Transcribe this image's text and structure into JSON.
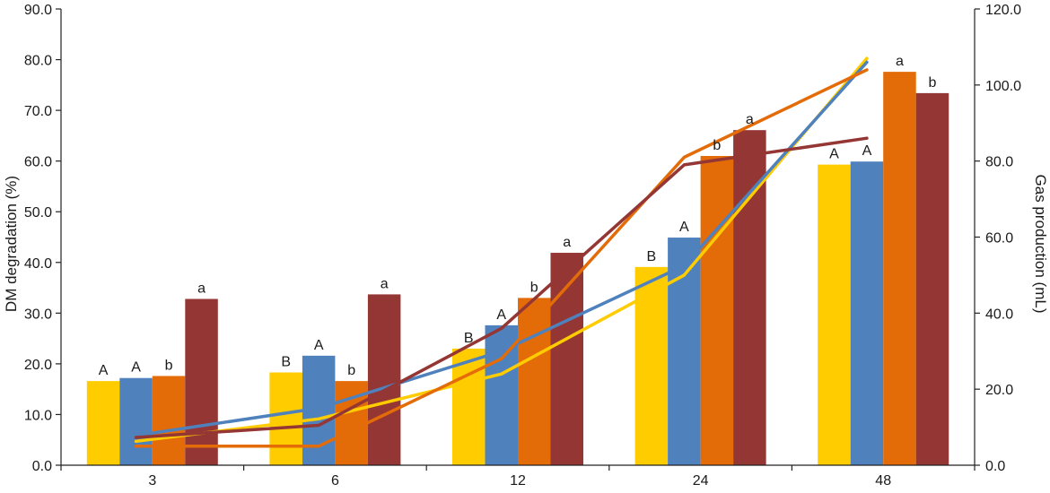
{
  "chart_data": {
    "type": "bar",
    "title": "",
    "xlabel": "",
    "ylabel": "DM degradation (%)",
    "y2label": "Gas production (mL)",
    "categories": [
      "3",
      "6",
      "12",
      "24",
      "48"
    ],
    "ylim": [
      0,
      90
    ],
    "y2lim": [
      0,
      120
    ],
    "yticks": [
      "0.0",
      "10.0",
      "20.0",
      "30.0",
      "40.0",
      "50.0",
      "60.0",
      "70.0",
      "80.0",
      "90.0"
    ],
    "y2ticks": [
      "0.0",
      "20.0",
      "40.0",
      "60.0",
      "80.0",
      "100.0",
      "120.0"
    ],
    "grid": false,
    "legend": "none",
    "bar_series": [
      {
        "color": "#FFCC00",
        "values": [
          16.6,
          18.3,
          23.0,
          39.1,
          59.3
        ],
        "labels": [
          "A",
          "B",
          "B",
          "B",
          "A"
        ]
      },
      {
        "color": "#4F81BD",
        "values": [
          17.2,
          21.6,
          27.6,
          44.9,
          59.9
        ],
        "labels": [
          "A",
          "A",
          "A",
          "A",
          "A"
        ]
      },
      {
        "color": "#E36C09",
        "values": [
          17.6,
          16.6,
          33.0,
          61.0,
          77.6
        ],
        "labels": [
          "b",
          "b",
          "b",
          "b",
          "a"
        ]
      },
      {
        "color": "#943634",
        "values": [
          32.8,
          33.7,
          41.9,
          66.1,
          73.4
        ],
        "labels": [
          "a",
          "a",
          "a",
          "a",
          "b"
        ]
      }
    ],
    "line_series": [
      {
        "color": "#FFCC00",
        "axis": "right",
        "values": [
          6.3,
          12.2,
          24.0,
          50.0,
          107.0
        ]
      },
      {
        "color": "#4F81BD",
        "axis": "right",
        "values": [
          7.8,
          15.0,
          30.0,
          52.5,
          106.0
        ]
      },
      {
        "color": "#E36C09",
        "axis": "right",
        "values": [
          5.0,
          5.0,
          28.0,
          81.0,
          104.0
        ]
      },
      {
        "color": "#943634",
        "axis": "right",
        "values": [
          7.3,
          10.5,
          36.0,
          79.0,
          86.0
        ]
      }
    ]
  }
}
